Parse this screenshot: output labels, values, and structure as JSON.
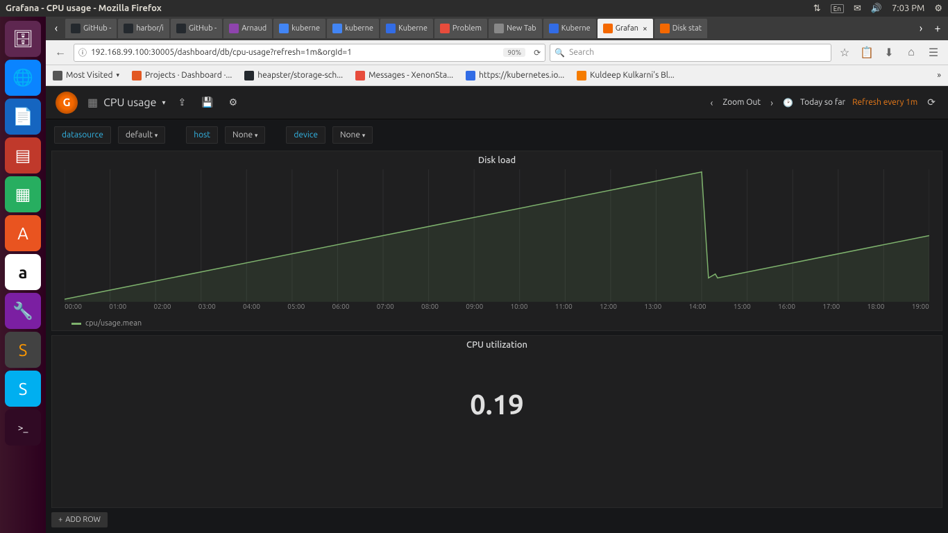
{
  "ubuntu_panel": {
    "window_title": "Grafana - CPU usage - Mozilla Firefox",
    "lang": "En",
    "time": "7:03 PM"
  },
  "launcher_items": [
    {
      "name": "files",
      "glyph": "📁"
    },
    {
      "name": "firefox",
      "glyph": "🦊"
    },
    {
      "name": "writer",
      "glyph": "📝"
    },
    {
      "name": "impress",
      "glyph": "📊"
    },
    {
      "name": "calc",
      "glyph": "📗"
    },
    {
      "name": "software",
      "glyph": "A"
    },
    {
      "name": "amazon",
      "glyph": "a"
    },
    {
      "name": "settings",
      "glyph": "🔧"
    },
    {
      "name": "sublime",
      "glyph": "S"
    },
    {
      "name": "skype",
      "glyph": "S"
    },
    {
      "name": "terminal",
      "glyph": ">_"
    }
  ],
  "tabs": [
    {
      "label": "GitHub -",
      "fav": "#24292e"
    },
    {
      "label": "harbor/i",
      "fav": "#24292e"
    },
    {
      "label": "GitHub -",
      "fav": "#24292e"
    },
    {
      "label": "Arnaud",
      "fav": "#8e44ad"
    },
    {
      "label": "kuberne",
      "fav": "#4285f4"
    },
    {
      "label": "kuberne",
      "fav": "#4285f4"
    },
    {
      "label": "Kuberne",
      "fav": "#326ce5"
    },
    {
      "label": "Problem",
      "fav": "#e74c3c"
    },
    {
      "label": "New Tab",
      "fav": "#888"
    },
    {
      "label": "Kuberne",
      "fav": "#326ce5"
    },
    {
      "label": "Grafan",
      "fav": "#f46800",
      "active": true
    },
    {
      "label": "Disk stat",
      "fav": "#f46800"
    }
  ],
  "url": "192.168.99.100:30005/dashboard/db/cpu-usage?refresh=1m&orgId=1",
  "zoom": "90%",
  "search_placeholder": "Search",
  "bookmarks": [
    {
      "label": "Most Visited",
      "fav": "#555",
      "caret": true
    },
    {
      "label": "Projects · Dashboard ·...",
      "fav": "#e25822"
    },
    {
      "label": "heapster/storage-sch...",
      "fav": "#24292e"
    },
    {
      "label": "Messages - XenonSta...",
      "fav": "#e74c3c"
    },
    {
      "label": "https://kubernetes.io...",
      "fav": "#326ce5"
    },
    {
      "label": "Kuldeep Kulkarni's Bl...",
      "fav": "#f57c00"
    }
  ],
  "grafana": {
    "dash_title": "CPU usage",
    "time_range": "Today so far",
    "zoom_out": "Zoom Out",
    "refresh": "Refresh every 1m",
    "vars": [
      {
        "label": "datasource",
        "value": "default"
      },
      {
        "label": "host",
        "value": "None"
      },
      {
        "label": "device",
        "value": "None"
      }
    ],
    "add_row": "ADD ROW"
  },
  "disk_chart": {
    "type": "line",
    "title": "Disk load",
    "legend_label": "cpu/usage.mean",
    "series_color": "#7eb26d",
    "grid_color": "#2f2f30",
    "background_color": "#1f1f20",
    "x_ticks": [
      "00:00",
      "01:00",
      "02:00",
      "03:00",
      "04:00",
      "05:00",
      "06:00",
      "07:00",
      "08:00",
      "09:00",
      "10:00",
      "11:00",
      "12:00",
      "13:00",
      "14:00",
      "15:00",
      "16:00",
      "17:00",
      "18:00",
      "19:00"
    ],
    "x_range": [
      0,
      19
    ],
    "y_range": [
      0,
      100
    ],
    "points": [
      [
        0,
        2
      ],
      [
        14,
        98
      ],
      [
        14.15,
        18
      ],
      [
        14.3,
        21
      ],
      [
        14.35,
        18
      ],
      [
        19,
        50
      ]
    ]
  },
  "cpu_stat": {
    "title": "CPU utilization",
    "value": "0.19",
    "value_color": "#e0e0e0",
    "value_fontsize": 40
  }
}
